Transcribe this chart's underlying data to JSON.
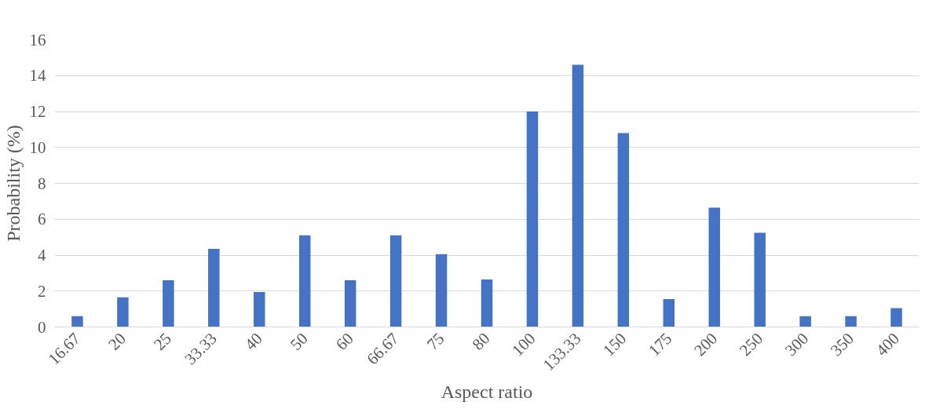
{
  "chart_data": {
    "type": "bar",
    "xlabel": "Aspect ratio",
    "ylabel": "Probability (%)",
    "categories": [
      "16.67",
      "20",
      "25",
      "33.33",
      "40",
      "50",
      "60",
      "66.67",
      "75",
      "80",
      "100",
      "133.33",
      "150",
      "175",
      "200",
      "250",
      "300",
      "350",
      "400"
    ],
    "values": [
      0.6,
      1.65,
      2.6,
      4.35,
      1.95,
      5.1,
      2.6,
      5.1,
      4.05,
      2.65,
      12.0,
      14.6,
      10.8,
      1.55,
      6.65,
      5.25,
      0.6,
      0.6,
      1.05
    ],
    "color": "#4472c4",
    "ylim": [
      0,
      16
    ],
    "yticks": [
      0,
      2,
      4,
      6,
      8,
      10,
      12,
      14,
      16
    ],
    "grid": "y"
  }
}
